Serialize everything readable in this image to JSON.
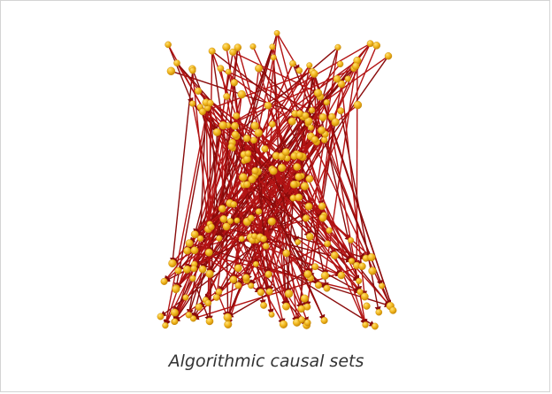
{
  "caption": "Algorithmic causal sets",
  "colors": {
    "edge": "#b31414",
    "edge_dark": "#8a0b0b",
    "node": "#f2b81e",
    "node_highlight": "#ffe27a",
    "node_shadow": "#c98a08",
    "frame_border": "#d4d4d4"
  }
}
